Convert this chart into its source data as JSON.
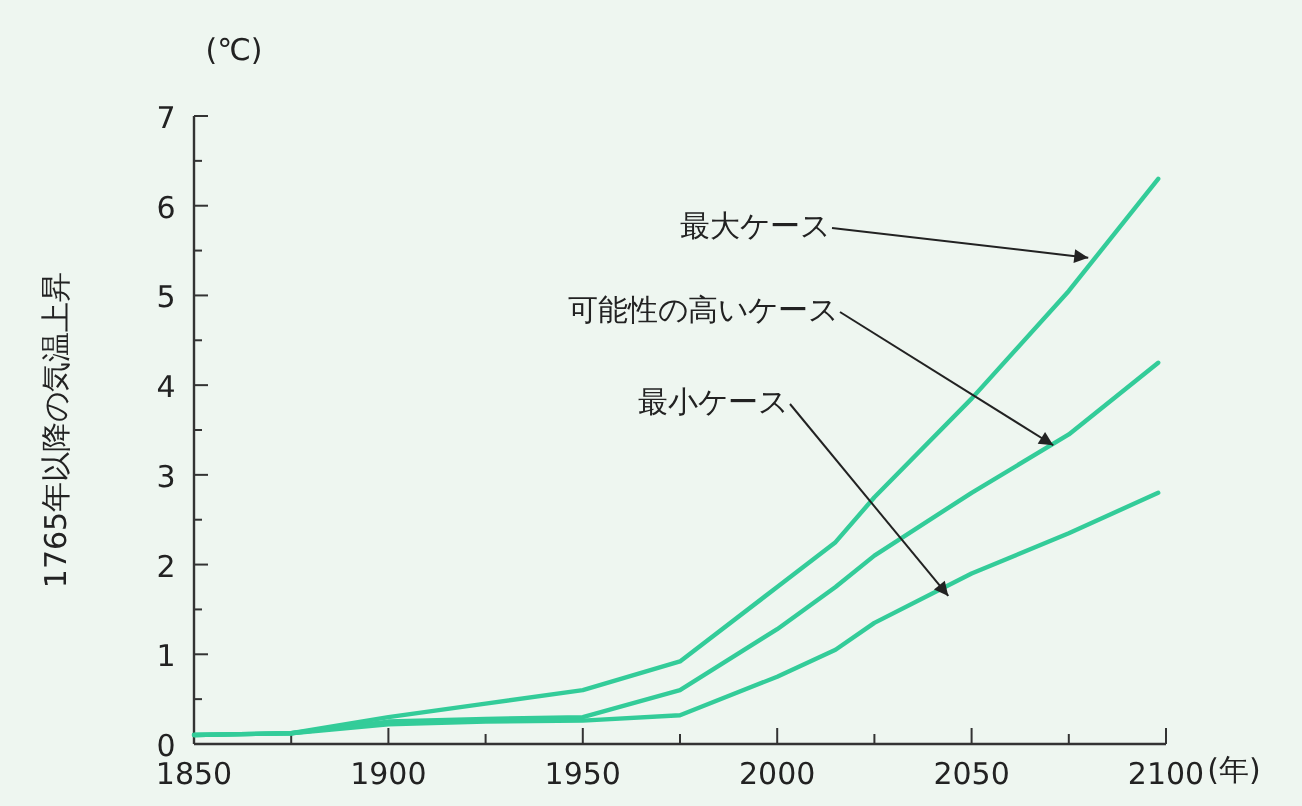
{
  "chart_data": {
    "type": "line",
    "xlabel": "(年)",
    "ylabel": "1765年以降の気温上昇",
    "x": [
      1850,
      1875,
      1900,
      1925,
      1950,
      1975,
      2000,
      2015,
      2025,
      2050,
      2075,
      2098
    ],
    "series": [
      {
        "color": "#33cc99",
        "values": [
          0.1,
          0.12,
          0.3,
          0.45,
          0.6,
          0.92,
          1.75,
          2.25,
          2.75,
          3.85,
          5.05,
          6.3
        ]
      },
      {
        "color": "#33cc99",
        "values": [
          0.1,
          0.12,
          0.25,
          0.28,
          0.3,
          0.6,
          1.28,
          1.75,
          2.1,
          2.8,
          3.45,
          4.25
        ]
      },
      {
        "color": "#33cc99",
        "values": [
          0.1,
          0.12,
          0.22,
          0.25,
          0.26,
          0.32,
          0.75,
          1.05,
          1.35,
          1.9,
          2.35,
          2.8
        ]
      }
    ],
    "xlim": [
      1850,
      2100
    ],
    "xticks": [
      1850,
      {
        "value": 1875,
        "label": null
      },
      1900,
      {
        "value": 1925,
        "label": null
      },
      1950,
      {
        "value": 1975,
        "label": null
      },
      2000,
      {
        "value": 2025,
        "label": null
      },
      2050,
      {
        "value": 2075,
        "label": null
      },
      2100
    ],
    "ylim": [
      0,
      7
    ],
    "yticks": [
      0,
      {
        "value": 0.5,
        "label": null
      },
      1,
      {
        "value": 1.5,
        "label": null
      },
      2,
      {
        "value": 2.5,
        "label": null
      },
      3,
      {
        "value": 3.5,
        "label": null
      },
      4,
      {
        "value": 4.5,
        "label": null
      },
      5,
      {
        "value": 5.5,
        "label": null
      },
      6,
      {
        "value": 6.5,
        "label": null
      },
      7
    ],
    "annotations": [
      "(℃)",
      {
        "text": "最大ケース",
        "x": 2080,
        "y": 5.42
      },
      {
        "text": "可能性の高いケース",
        "x": 2071,
        "y": 3.33
      },
      {
        "text": "最小ケース",
        "x": 2044,
        "y": 1.65
      }
    ],
    "grid": false,
    "marker": "none",
    "line_style": "solid"
  }
}
